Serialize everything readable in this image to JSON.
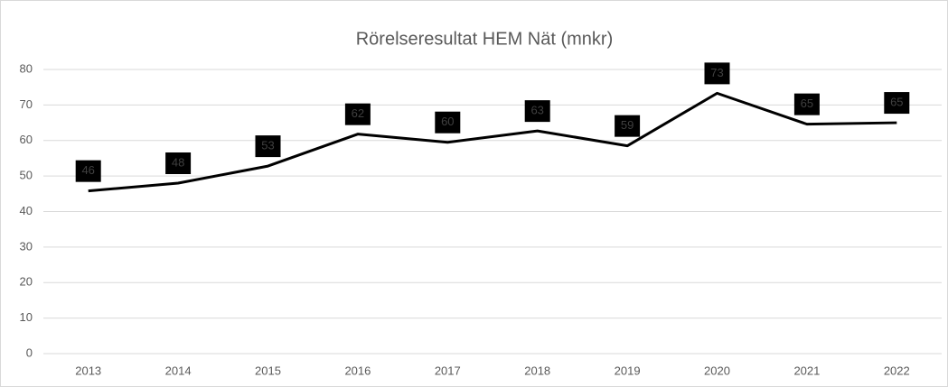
{
  "chart_data": {
    "type": "line",
    "title": "Rörelseresultat HEM Nät (mnkr)",
    "categories": [
      "2013",
      "2014",
      "2015",
      "2016",
      "2017",
      "2018",
      "2019",
      "2020",
      "2021",
      "2022"
    ],
    "series": [
      {
        "name": "Rörelseresultat",
        "color": "#000000",
        "values": [
          45.8,
          48,
          52.8,
          61.8,
          59.5,
          62.7,
          58.5,
          73.3,
          64.6,
          65
        ],
        "value_labels": [
          "46",
          "48",
          "53",
          "62",
          "60",
          "63",
          "59",
          "73",
          "65",
          "65"
        ]
      }
    ],
    "ylim": [
      0,
      80
    ],
    "yticks": [
      0,
      10,
      20,
      30,
      40,
      50,
      60,
      70,
      80
    ],
    "grid": true
  }
}
